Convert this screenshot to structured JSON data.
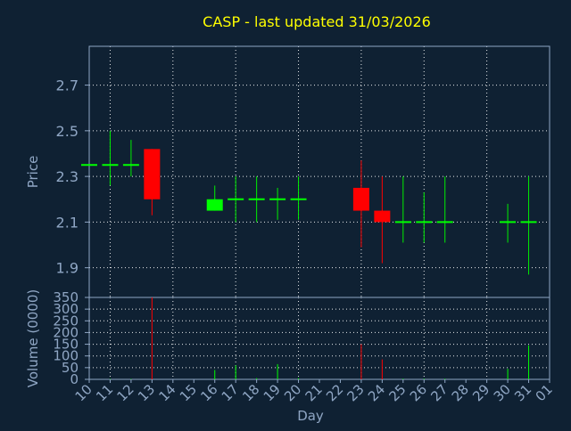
{
  "title": "CASP - last updated 31/03/2026",
  "colors": {
    "background": "#0f2133",
    "title": "#ffff00",
    "axis_text": "#8fa6c4",
    "frame": "#8fa6c4",
    "grid": "#ffffff",
    "up": "#00ff00",
    "down": "#ff0000",
    "wick_up": "#00ee00",
    "wick_down": "#ff0000"
  },
  "chart_data": [
    {
      "type": "candlestick",
      "ylabel": "Price",
      "ylim": [
        1.77,
        2.87
      ],
      "yticks": [
        "1.9",
        "2.1",
        "2.3",
        "2.5",
        "2.7"
      ],
      "x_range": [
        10,
        32
      ],
      "grid": true,
      "candles": [
        {
          "day": 10,
          "open": 2.35,
          "high": 2.35,
          "low": 2.35,
          "close": 2.35
        },
        {
          "day": 11,
          "open": 2.35,
          "high": 2.5,
          "low": 2.26,
          "close": 2.35
        },
        {
          "day": 12,
          "open": 2.35,
          "high": 2.46,
          "low": 2.3,
          "close": 2.35
        },
        {
          "day": 13,
          "open": 2.42,
          "high": 2.42,
          "low": 2.13,
          "close": 2.2
        },
        {
          "day": 16,
          "open": 2.15,
          "high": 2.26,
          "low": 2.15,
          "close": 2.2
        },
        {
          "day": 17,
          "open": 2.2,
          "high": 2.3,
          "low": 2.1,
          "close": 2.2
        },
        {
          "day": 18,
          "open": 2.2,
          "high": 2.3,
          "low": 2.1,
          "close": 2.2
        },
        {
          "day": 19,
          "open": 2.2,
          "high": 2.25,
          "low": 2.11,
          "close": 2.2
        },
        {
          "day": 20,
          "open": 2.2,
          "high": 2.3,
          "low": 2.11,
          "close": 2.2
        },
        {
          "day": 23,
          "open": 2.25,
          "high": 2.37,
          "low": 1.99,
          "close": 2.15
        },
        {
          "day": 24,
          "open": 2.15,
          "high": 2.3,
          "low": 1.92,
          "close": 2.1
        },
        {
          "day": 25,
          "open": 2.1,
          "high": 2.3,
          "low": 2.01,
          "close": 2.1
        },
        {
          "day": 26,
          "open": 2.1,
          "high": 2.23,
          "low": 2.01,
          "close": 2.1
        },
        {
          "day": 27,
          "open": 2.1,
          "high": 2.3,
          "low": 2.01,
          "close": 2.1
        },
        {
          "day": 30,
          "open": 2.1,
          "high": 2.18,
          "low": 2.01,
          "close": 2.1
        },
        {
          "day": 31,
          "open": 2.1,
          "high": 2.3,
          "low": 1.87,
          "close": 2.1
        }
      ]
    },
    {
      "type": "bar",
      "ylabel": "Volume (0000)",
      "xlabel": "Day",
      "ylim": [
        0,
        350
      ],
      "yticks": [
        "0",
        "50",
        "100",
        "150",
        "200",
        "250",
        "300",
        "350"
      ],
      "x_range": [
        10,
        32
      ],
      "xticks": [
        "10",
        "11",
        "12",
        "13",
        "14",
        "15",
        "16",
        "17",
        "18",
        "19",
        "20",
        "21",
        "22",
        "23",
        "24",
        "25",
        "26",
        "27",
        "28",
        "29",
        "30",
        "31",
        "01"
      ],
      "grid": true,
      "bars": [
        {
          "day": 11,
          "value": 2,
          "dir": "up"
        },
        {
          "day": 12,
          "value": 2,
          "dir": "up"
        },
        {
          "day": 13,
          "value": 350,
          "dir": "down"
        },
        {
          "day": 16,
          "value": 40,
          "dir": "up"
        },
        {
          "day": 17,
          "value": 60,
          "dir": "up"
        },
        {
          "day": 18,
          "value": 5,
          "dir": "up"
        },
        {
          "day": 19,
          "value": 65,
          "dir": "up"
        },
        {
          "day": 20,
          "value": 5,
          "dir": "up"
        },
        {
          "day": 23,
          "value": 150,
          "dir": "down"
        },
        {
          "day": 24,
          "value": 85,
          "dir": "down"
        },
        {
          "day": 25,
          "value": 3,
          "dir": "up"
        },
        {
          "day": 26,
          "value": 3,
          "dir": "up"
        },
        {
          "day": 27,
          "value": 3,
          "dir": "up"
        },
        {
          "day": 30,
          "value": 45,
          "dir": "up"
        },
        {
          "day": 31,
          "value": 145,
          "dir": "up"
        }
      ]
    }
  ]
}
